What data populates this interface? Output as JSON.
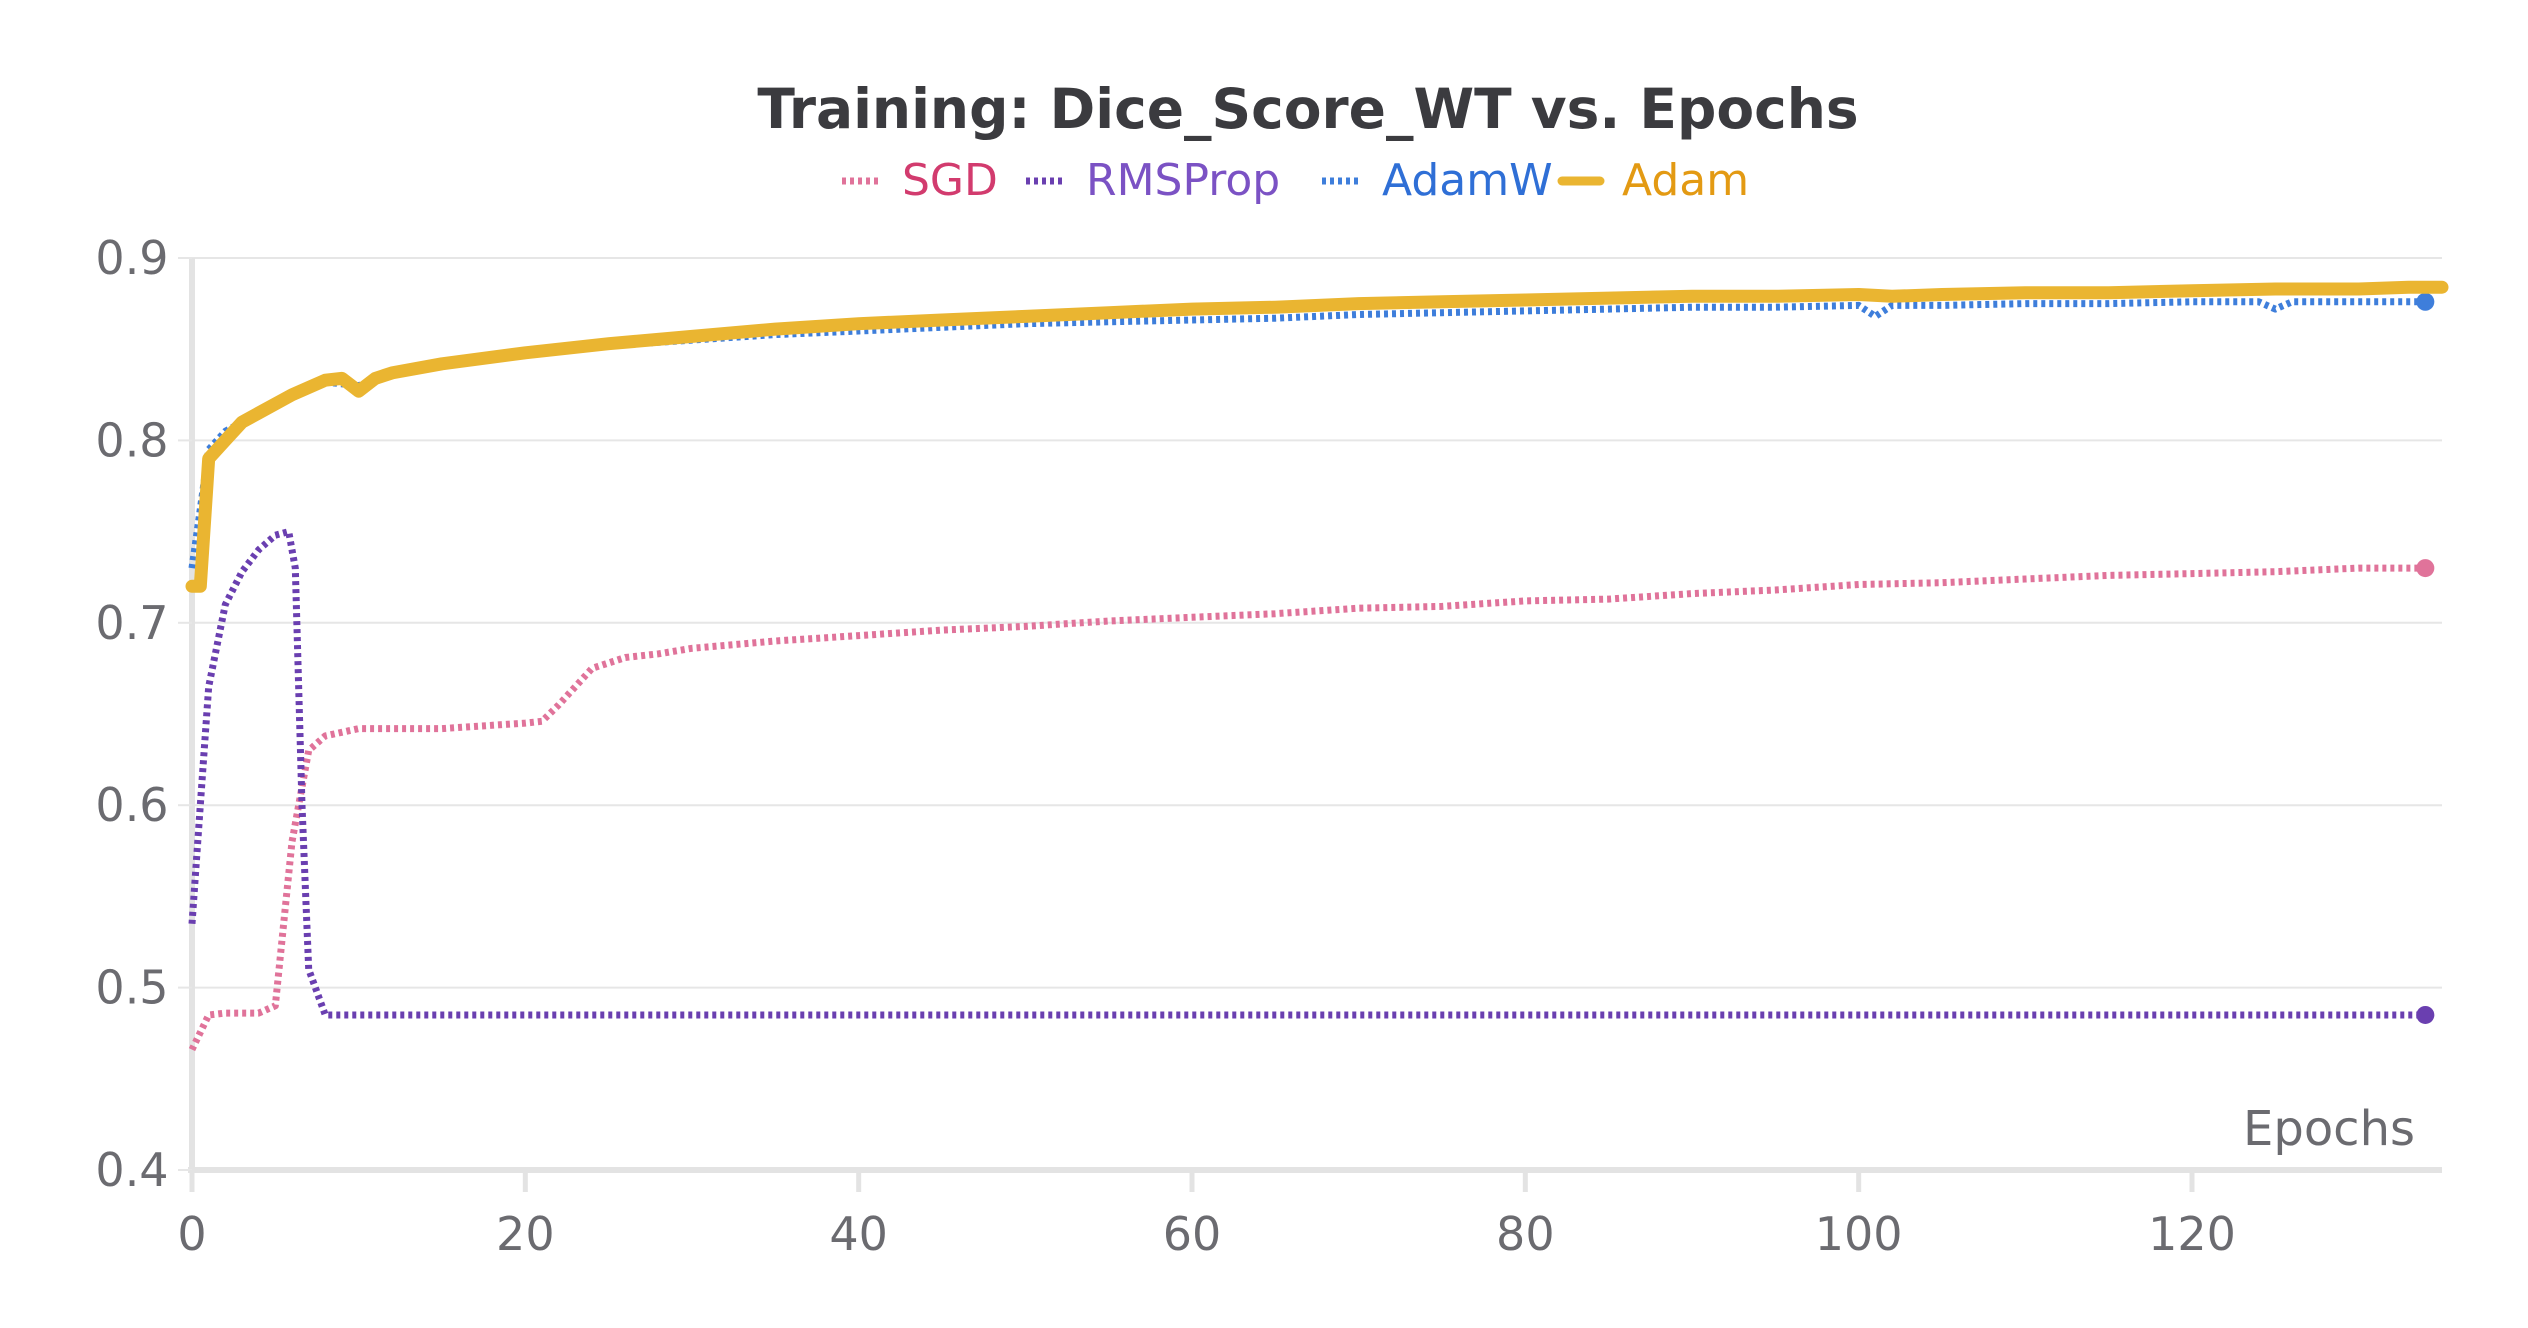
{
  "chart_data": {
    "type": "line",
    "title": "Training: Dice_Score_WT vs. Epochs",
    "xlabel": "Epochs",
    "ylabel": "",
    "xlim": [
      0,
      135
    ],
    "ylim": [
      0.4,
      0.9
    ],
    "x_ticks": [
      0,
      20,
      40,
      60,
      80,
      100,
      120
    ],
    "y_ticks": [
      0.4,
      0.5,
      0.6,
      0.7,
      0.8,
      0.9
    ],
    "y_tick_labels": [
      "0.4",
      "0.5",
      "0.6",
      "0.7",
      "0.8",
      "0.9"
    ],
    "grid": true,
    "legend_position": "top-center",
    "series": [
      {
        "name": "SGD",
        "color": "#e0739a",
        "label_color": "#d23b6e",
        "style": "dotted",
        "points": [
          [
            0,
            0.466
          ],
          [
            1,
            0.485
          ],
          [
            2,
            0.486
          ],
          [
            3,
            0.486
          ],
          [
            4,
            0.486
          ],
          [
            5,
            0.49
          ],
          [
            6,
            0.58
          ],
          [
            7,
            0.63
          ],
          [
            8,
            0.638
          ],
          [
            10,
            0.642
          ],
          [
            15,
            0.642
          ],
          [
            20,
            0.645
          ],
          [
            21,
            0.646
          ],
          [
            22,
            0.655
          ],
          [
            24,
            0.675
          ],
          [
            26,
            0.681
          ],
          [
            28,
            0.683
          ],
          [
            30,
            0.686
          ],
          [
            35,
            0.69
          ],
          [
            40,
            0.693
          ],
          [
            45,
            0.696
          ],
          [
            50,
            0.698
          ],
          [
            55,
            0.701
          ],
          [
            60,
            0.703
          ],
          [
            65,
            0.705
          ],
          [
            70,
            0.708
          ],
          [
            75,
            0.709
          ],
          [
            80,
            0.712
          ],
          [
            85,
            0.713
          ],
          [
            90,
            0.716
          ],
          [
            95,
            0.718
          ],
          [
            100,
            0.721
          ],
          [
            105,
            0.722
          ],
          [
            110,
            0.724
          ],
          [
            115,
            0.726
          ],
          [
            120,
            0.727
          ],
          [
            125,
            0.728
          ],
          [
            130,
            0.73
          ],
          [
            134,
            0.73
          ]
        ],
        "end_marker": true
      },
      {
        "name": "RMSProp",
        "color": "#6a3fb0",
        "label_color": "#7b52c4",
        "style": "dotted",
        "points": [
          [
            0,
            0.535
          ],
          [
            0.5,
            0.6
          ],
          [
            1,
            0.665
          ],
          [
            2,
            0.71
          ],
          [
            3,
            0.728
          ],
          [
            4,
            0.74
          ],
          [
            5,
            0.748
          ],
          [
            5.8,
            0.75
          ],
          [
            6.2,
            0.73
          ],
          [
            6.6,
            0.6
          ],
          [
            7,
            0.51
          ],
          [
            8,
            0.485
          ],
          [
            10,
            0.485
          ],
          [
            134,
            0.485
          ]
        ],
        "end_marker": true
      },
      {
        "name": "AdamW",
        "color": "#3e7edb",
        "label_color": "#2f6fd6",
        "style": "dotted",
        "points": [
          [
            0,
            0.73
          ],
          [
            1,
            0.795
          ],
          [
            2,
            0.805
          ],
          [
            4,
            0.815
          ],
          [
            6,
            0.825
          ],
          [
            8,
            0.832
          ],
          [
            10,
            0.83
          ],
          [
            12,
            0.837
          ],
          [
            15,
            0.842
          ],
          [
            20,
            0.848
          ],
          [
            25,
            0.852
          ],
          [
            30,
            0.855
          ],
          [
            35,
            0.858
          ],
          [
            40,
            0.86
          ],
          [
            45,
            0.862
          ],
          [
            50,
            0.864
          ],
          [
            55,
            0.865
          ],
          [
            60,
            0.866
          ],
          [
            65,
            0.867
          ],
          [
            70,
            0.869
          ],
          [
            75,
            0.87
          ],
          [
            80,
            0.871
          ],
          [
            85,
            0.872
          ],
          [
            90,
            0.873
          ],
          [
            95,
            0.873
          ],
          [
            100,
            0.874
          ],
          [
            101,
            0.868
          ],
          [
            102,
            0.874
          ],
          [
            105,
            0.874
          ],
          [
            110,
            0.875
          ],
          [
            115,
            0.875
          ],
          [
            120,
            0.876
          ],
          [
            124,
            0.876
          ],
          [
            125,
            0.872
          ],
          [
            126,
            0.876
          ],
          [
            130,
            0.876
          ],
          [
            134,
            0.876
          ]
        ],
        "end_marker": true
      },
      {
        "name": "Adam",
        "color": "#eab531",
        "label_color": "#e39a13",
        "style": "solid",
        "points": [
          [
            0,
            0.72
          ],
          [
            0.5,
            0.72
          ],
          [
            1,
            0.79
          ],
          [
            2,
            0.8
          ],
          [
            3,
            0.81
          ],
          [
            4,
            0.815
          ],
          [
            6,
            0.825
          ],
          [
            8,
            0.833
          ],
          [
            9,
            0.834
          ],
          [
            10,
            0.827
          ],
          [
            11,
            0.834
          ],
          [
            12,
            0.837
          ],
          [
            15,
            0.842
          ],
          [
            20,
            0.848
          ],
          [
            25,
            0.853
          ],
          [
            30,
            0.857
          ],
          [
            35,
            0.861
          ],
          [
            40,
            0.864
          ],
          [
            45,
            0.866
          ],
          [
            50,
            0.868
          ],
          [
            55,
            0.87
          ],
          [
            60,
            0.872
          ],
          [
            65,
            0.873
          ],
          [
            70,
            0.875
          ],
          [
            75,
            0.876
          ],
          [
            80,
            0.877
          ],
          [
            85,
            0.878
          ],
          [
            90,
            0.879
          ],
          [
            95,
            0.879
          ],
          [
            100,
            0.88
          ],
          [
            102,
            0.879
          ],
          [
            105,
            0.88
          ],
          [
            110,
            0.881
          ],
          [
            115,
            0.881
          ],
          [
            120,
            0.882
          ],
          [
            125,
            0.883
          ],
          [
            130,
            0.883
          ],
          [
            133,
            0.884
          ],
          [
            135,
            0.884
          ]
        ],
        "end_marker": false
      }
    ]
  }
}
